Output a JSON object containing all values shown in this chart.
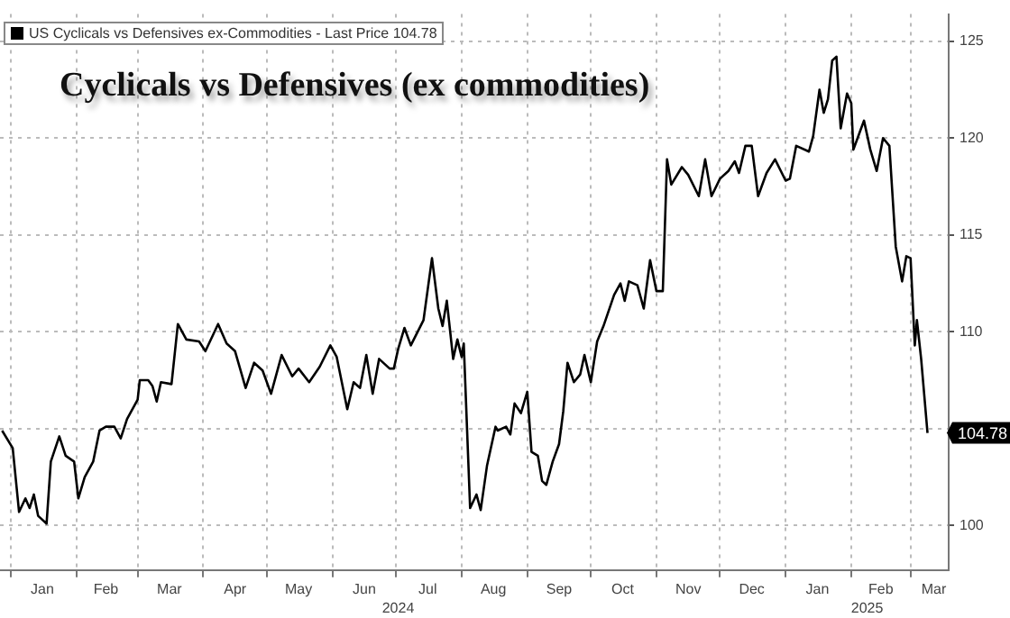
{
  "chart_data": {
    "type": "line",
    "title": "Cyclicals vs Defensives (ex commodities)",
    "x": [
      "2023-12-28",
      "2024-01-02",
      "2024-01-05",
      "2024-01-08",
      "2024-01-10",
      "2024-01-12",
      "2024-01-14",
      "2024-01-18",
      "2024-01-20",
      "2024-01-24",
      "2024-01-27",
      "2024-01-31",
      "2024-02-02",
      "2024-02-05",
      "2024-02-09",
      "2024-02-12",
      "2024-02-15",
      "2024-02-19",
      "2024-02-22",
      "2024-02-25",
      "2024-03-01",
      "2024-03-02",
      "2024-03-06",
      "2024-03-08",
      "2024-03-10",
      "2024-03-12",
      "2024-03-17",
      "2024-03-20",
      "2024-03-24",
      "2024-03-30",
      "2024-04-02",
      "2024-04-08",
      "2024-04-12",
      "2024-04-16",
      "2024-04-21",
      "2024-04-25",
      "2024-04-29",
      "2024-05-03",
      "2024-05-08",
      "2024-05-13",
      "2024-05-16",
      "2024-05-21",
      "2024-05-26",
      "2024-05-31",
      "2024-06-03",
      "2024-06-08",
      "2024-06-11",
      "2024-06-14",
      "2024-06-17",
      "2024-06-20",
      "2024-06-23",
      "2024-06-28",
      "2024-06-30",
      "2024-07-02",
      "2024-07-05",
      "2024-07-08",
      "2024-07-14",
      "2024-07-18",
      "2024-07-21",
      "2024-07-23",
      "2024-07-25",
      "2024-07-28",
      "2024-07-30",
      "2024-08-01",
      "2024-08-02",
      "2024-08-05",
      "2024-08-08",
      "2024-08-10",
      "2024-08-13",
      "2024-08-17",
      "2024-08-18",
      "2024-08-22",
      "2024-08-24",
      "2024-08-26",
      "2024-08-29",
      "2024-09-01",
      "2024-09-03",
      "2024-09-06",
      "2024-09-08",
      "2024-09-10",
      "2024-09-13",
      "2024-09-16",
      "2024-09-18",
      "2024-09-20",
      "2024-09-23",
      "2024-09-26",
      "2024-09-28",
      "2024-10-01",
      "2024-10-04",
      "2024-10-07",
      "2024-10-12",
      "2024-10-15",
      "2024-10-17",
      "2024-10-19",
      "2024-10-23",
      "2024-10-26",
      "2024-10-29",
      "2024-11-01",
      "2024-11-04",
      "2024-11-06",
      "2024-11-08",
      "2024-11-13",
      "2024-11-16",
      "2024-11-21",
      "2024-11-24",
      "2024-11-27",
      "2024-12-01",
      "2024-12-05",
      "2024-12-08",
      "2024-12-10",
      "2024-12-13",
      "2024-12-16",
      "2024-12-19",
      "2024-12-23",
      "2024-12-27",
      "2025-01-01",
      "2025-01-03",
      "2025-01-06",
      "2025-01-12",
      "2025-01-14",
      "2025-01-17",
      "2025-01-19",
      "2025-01-21",
      "2025-01-23",
      "2025-01-25",
      "2025-01-27",
      "2025-01-30",
      "2025-02-01",
      "2025-02-02",
      "2025-02-05",
      "2025-02-07",
      "2025-02-10",
      "2025-02-13",
      "2025-02-16",
      "2025-02-19",
      "2025-02-22",
      "2025-02-25",
      "2025-02-27",
      "2025-03-01",
      "2025-03-03",
      "2025-03-04",
      "2025-03-06",
      "2025-03-09"
    ],
    "series": [
      {
        "name": "US Cyclicals vs Defensives ex-Commodities - Last Price 104.78",
        "color": "#000000",
        "values": [
          104.9,
          104.0,
          100.7,
          101.4,
          100.9,
          101.6,
          100.5,
          100.1,
          103.3,
          104.6,
          103.6,
          103.3,
          101.4,
          102.5,
          103.3,
          104.9,
          105.1,
          105.1,
          104.5,
          105.5,
          106.5,
          107.5,
          107.5,
          107.2,
          106.4,
          107.4,
          107.3,
          110.4,
          109.6,
          109.5,
          109.0,
          110.4,
          109.4,
          109.0,
          107.1,
          108.4,
          108.0,
          106.8,
          108.8,
          107.7,
          108.1,
          107.4,
          108.2,
          109.3,
          108.7,
          106.0,
          107.4,
          107.1,
          108.8,
          106.8,
          108.6,
          108.1,
          108.1,
          109.1,
          110.2,
          109.3,
          110.6,
          113.8,
          111.2,
          110.3,
          111.6,
          108.6,
          109.6,
          108.7,
          109.4,
          100.9,
          101.6,
          100.8,
          103.1,
          105.1,
          104.9,
          105.1,
          104.7,
          106.3,
          105.8,
          106.9,
          103.8,
          103.6,
          102.3,
          102.1,
          103.3,
          104.2,
          105.9,
          108.4,
          107.4,
          107.8,
          108.8,
          107.4,
          109.5,
          110.3,
          111.9,
          112.5,
          111.6,
          112.6,
          112.4,
          111.2,
          113.7,
          112.1,
          112.1,
          118.9,
          117.6,
          118.5,
          118.1,
          117.0,
          118.9,
          117.0,
          117.9,
          118.3,
          118.8,
          118.2,
          119.6,
          119.6,
          117.0,
          118.2,
          118.9,
          117.8,
          117.9,
          119.6,
          119.3,
          120.1,
          122.5,
          121.3,
          122.0,
          124.0,
          124.2,
          120.5,
          122.3,
          121.8,
          119.4,
          120.3,
          120.9,
          119.4,
          118.3,
          120.0,
          119.6,
          114.4,
          112.6,
          113.9,
          113.8,
          109.3,
          110.6,
          108.6,
          104.78
        ],
        "value_labels": [
          null,
          null,
          null,
          null,
          null,
          null,
          null,
          null,
          null,
          null,
          null,
          null,
          null,
          null,
          null,
          null,
          null,
          null,
          null,
          null,
          null,
          null,
          null,
          null,
          null,
          null,
          null,
          null,
          null,
          null,
          null,
          null,
          null,
          null,
          null,
          null,
          null,
          null,
          null,
          null,
          null,
          null,
          null,
          null,
          null,
          null,
          null,
          null,
          null,
          null,
          null,
          null,
          null,
          null,
          null,
          null,
          null,
          null,
          null,
          null,
          null,
          null,
          null,
          null,
          null,
          null,
          null,
          null,
          null,
          null,
          null,
          null,
          null,
          null,
          null,
          null,
          null,
          null,
          null,
          null,
          null,
          null,
          null,
          null,
          null,
          null,
          null,
          null,
          null,
          null,
          null,
          null,
          null,
          null,
          null,
          null,
          null,
          null,
          null,
          null,
          null,
          null,
          null,
          null,
          null,
          null,
          null,
          null,
          null,
          null,
          null,
          null,
          null,
          null,
          null,
          null,
          null,
          null,
          null,
          null,
          null,
          null,
          null,
          null,
          null,
          null,
          null,
          null,
          null,
          null,
          null,
          null,
          null,
          null,
          null,
          null,
          null,
          null,
          null,
          null,
          null,
          null,
          "104.78"
        ]
      }
    ],
    "xlim": [
      "2023-12-27",
      "2025-03-19"
    ],
    "xticks": [
      {
        "value": "2024-01-01",
        "label": null
      },
      {
        "value": "2024-01-16",
        "label": "Jan"
      },
      {
        "value": "2024-02-01",
        "label": null
      },
      {
        "value": "2024-02-15",
        "label": "Feb"
      },
      {
        "value": "2024-03-01",
        "label": null
      },
      {
        "value": "2024-03-16",
        "label": "Mar"
      },
      {
        "value": "2024-04-01",
        "label": null
      },
      {
        "value": "2024-04-16",
        "label": "Apr"
      },
      {
        "value": "2024-05-01",
        "label": null
      },
      {
        "value": "2024-05-16",
        "label": "May"
      },
      {
        "value": "2024-06-01",
        "label": null
      },
      {
        "value": "2024-06-16",
        "label": "Jun"
      },
      {
        "value": "2024-07-01",
        "label": null
      },
      {
        "value": "2024-07-16",
        "label": "Jul"
      },
      {
        "value": "2024-08-01",
        "label": null
      },
      {
        "value": "2024-08-16",
        "label": "Aug"
      },
      {
        "value": "2024-09-01",
        "label": null
      },
      {
        "value": "2024-09-16",
        "label": "Sep"
      },
      {
        "value": "2024-10-01",
        "label": null
      },
      {
        "value": "2024-10-16",
        "label": "Oct"
      },
      {
        "value": "2024-11-01",
        "label": null
      },
      {
        "value": "2024-11-16",
        "label": "Nov"
      },
      {
        "value": "2024-12-01",
        "label": null
      },
      {
        "value": "2024-12-16",
        "label": "Dec"
      },
      {
        "value": "2025-01-01",
        "label": null
      },
      {
        "value": "2025-01-16",
        "label": "Jan"
      },
      {
        "value": "2025-02-01",
        "label": null
      },
      {
        "value": "2025-02-15",
        "label": "Feb"
      },
      {
        "value": "2025-03-01",
        "label": null
      },
      {
        "value": "2025-03-12",
        "label": "Mar"
      }
    ],
    "ylim": [
      97.7,
      126.4
    ],
    "yticks": [
      100,
      {
        "value": 105,
        "label": null
      },
      110,
      115,
      120,
      125
    ],
    "annotations": [
      "2024",
      "2025"
    ],
    "grid": true,
    "legend": "top left"
  }
}
